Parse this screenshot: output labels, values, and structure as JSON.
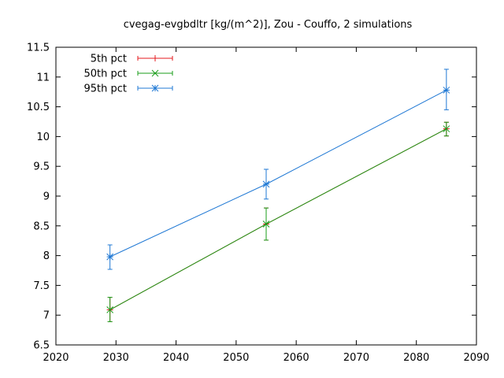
{
  "chart_data": {
    "type": "line",
    "title": "cvegag-evgbdltr [kg/(m^2)], Zou - Couffo, 2 simulations",
    "xlabel": "",
    "ylabel": "",
    "xlim": [
      2020,
      2090
    ],
    "ylim": [
      6.5,
      11.5
    ],
    "xticks": [
      2020,
      2030,
      2040,
      2050,
      2060,
      2070,
      2080,
      2090
    ],
    "xtick_labels": [
      "2020",
      "2030",
      "2040",
      "2050",
      "2060",
      "2070",
      "2080",
      "2090"
    ],
    "yticks": [
      6.5,
      7,
      7.5,
      8,
      8.5,
      9,
      9.5,
      10,
      10.5,
      11,
      11.5
    ],
    "ytick_labels": [
      "6.5",
      "7",
      "7.5",
      "8",
      "8.5",
      "9",
      "9.5",
      "10",
      "10.5",
      "11",
      "11.5"
    ],
    "grid": false,
    "legend_position": "top-left",
    "series": [
      {
        "name": "5th pct",
        "color": "#e41a1c",
        "marker": "plus",
        "x": [
          2029,
          2055,
          2085
        ],
        "y": [
          7.09,
          8.53,
          10.13
        ],
        "err_low": [
          6.89,
          8.26,
          10.01
        ],
        "err_high": [
          7.3,
          8.8,
          10.24
        ]
      },
      {
        "name": "50th pct",
        "color": "#1a9c1a",
        "marker": "cross",
        "x": [
          2029,
          2055,
          2085
        ],
        "y": [
          7.09,
          8.53,
          10.13
        ],
        "err_low": [
          6.89,
          8.26,
          10.01
        ],
        "err_high": [
          7.3,
          8.8,
          10.24
        ]
      },
      {
        "name": "95th pct",
        "color": "#1f78d4",
        "marker": "star",
        "x": [
          2029,
          2055,
          2085
        ],
        "y": [
          7.98,
          9.2,
          10.78
        ],
        "err_low": [
          7.77,
          8.95,
          10.45
        ],
        "err_high": [
          8.18,
          9.45,
          11.13
        ]
      }
    ]
  }
}
